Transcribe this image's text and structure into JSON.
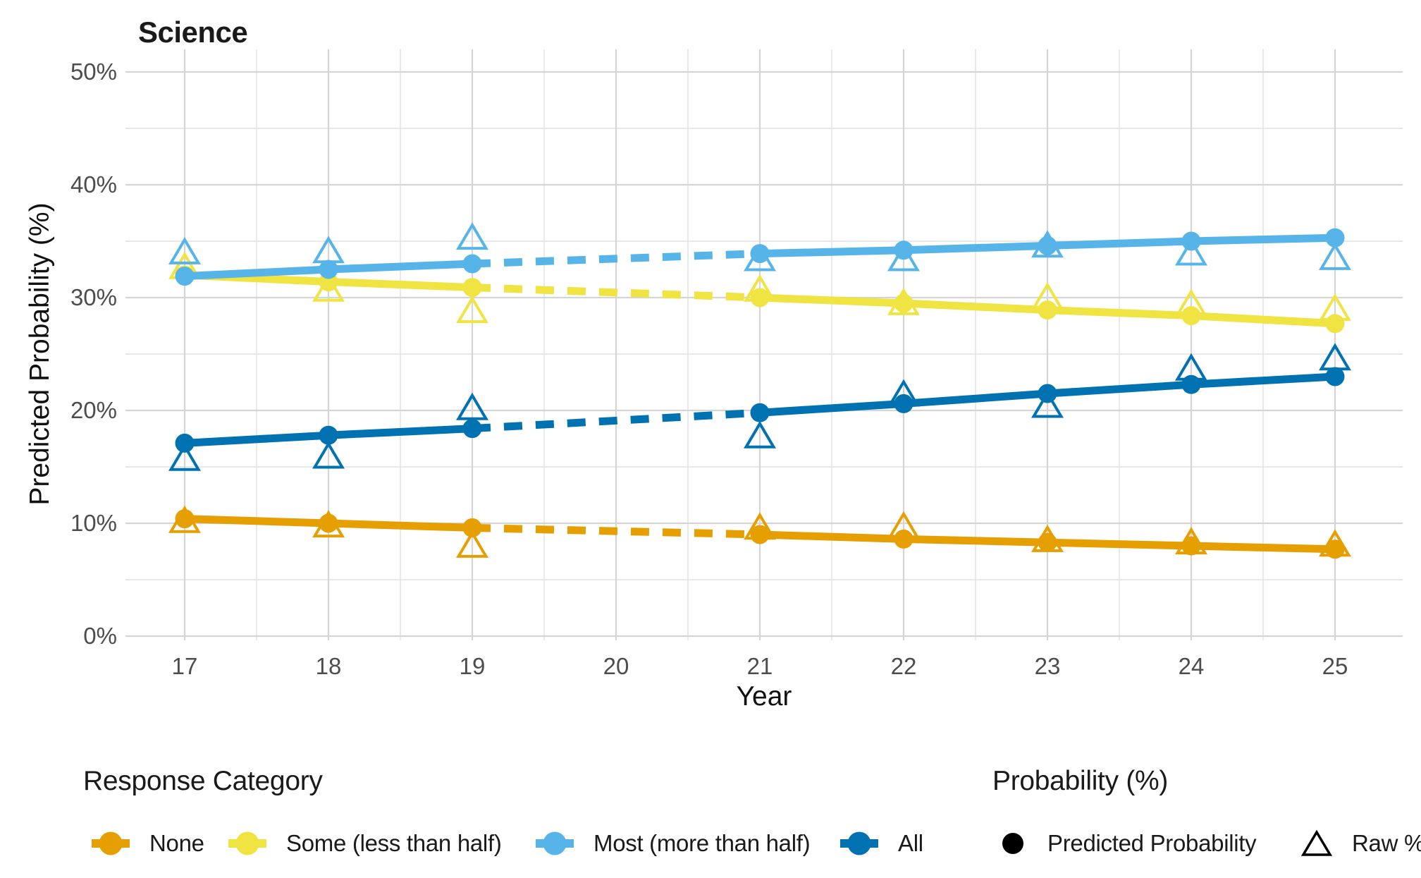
{
  "title": "Science",
  "axes": {
    "y_label": "Predicted Probability (%)",
    "x_label": "Year",
    "y_ticks": [
      "0%",
      "10%",
      "20%",
      "30%",
      "40%",
      "50%"
    ],
    "y_tick_values": [
      0,
      10,
      20,
      30,
      40,
      50
    ],
    "x_ticks": [
      "17",
      "18",
      "19",
      "20",
      "21",
      "22",
      "23",
      "24",
      "25"
    ],
    "x_tick_values": [
      17,
      18,
      19,
      20,
      21,
      22,
      23,
      24,
      25
    ]
  },
  "legend": {
    "response": {
      "title": "Response Category",
      "items": [
        {
          "label": "None",
          "color": "#E69F00"
        },
        {
          "label": "Some (less than half)",
          "color": "#F0E442"
        },
        {
          "label": "Most (more than half)",
          "color": "#56B4E9"
        },
        {
          "label": "All",
          "color": "#0072B2"
        }
      ]
    },
    "probability": {
      "title": "Probability (%)",
      "items": [
        {
          "label": "Predicted Probability",
          "marker": "circle"
        },
        {
          "label": "Raw %",
          "marker": "triangle"
        }
      ]
    }
  },
  "chart_data": {
    "type": "line",
    "title": "Science",
    "xlabel": "Year",
    "ylabel": "Predicted Probability (%)",
    "xlim": [
      16.6,
      25.5
    ],
    "ylim": [
      0,
      50
    ],
    "grid": true,
    "legend_position": "bottom",
    "x": [
      17,
      18,
      19,
      21,
      22,
      23,
      24,
      25
    ],
    "dashed_segment": {
      "from": 19,
      "to": 21,
      "note": "no data for year 20; prediction shown dashed"
    },
    "series": [
      {
        "name": "None",
        "color": "#E69F00",
        "z": 3,
        "predicted": [
          10.4,
          10.0,
          9.6,
          9.0,
          8.6,
          8.3,
          8.0,
          7.7
        ],
        "raw": [
          10.3,
          9.9,
          8.1,
          9.7,
          9.8,
          8.6,
          8.4,
          8.2
        ]
      },
      {
        "name": "Some (less than half)",
        "color": "#F0E442",
        "z": 1,
        "predicted": [
          32.0,
          31.4,
          30.9,
          30.0,
          29.5,
          28.9,
          28.4,
          27.7
        ],
        "raw": [
          32.8,
          30.8,
          28.9,
          30.8,
          29.6,
          30.1,
          29.5,
          29.1
        ]
      },
      {
        "name": "Most (more than half)",
        "color": "#56B4E9",
        "z": 2,
        "predicted": [
          31.9,
          32.5,
          33.0,
          33.9,
          34.2,
          34.6,
          35.0,
          35.3
        ],
        "raw": [
          34.1,
          34.2,
          35.4,
          33.5,
          33.5,
          34.7,
          34.0,
          33.6
        ]
      },
      {
        "name": "All",
        "color": "#0072B2",
        "z": 4,
        "predicted": [
          17.1,
          17.8,
          18.4,
          19.8,
          20.6,
          21.5,
          22.3,
          23.0
        ],
        "raw": [
          15.8,
          16.0,
          20.3,
          17.8,
          21.5,
          20.5,
          23.8,
          24.7
        ]
      }
    ],
    "marker_meaning": {
      "circle_filled": "Predicted Probability",
      "triangle_open": "Raw %"
    }
  },
  "style": {
    "grid_major_color": "#d5d5d5",
    "grid_minor_color": "#e0e0e0",
    "tick_text_color": "#4d4d4d",
    "text_color": "#1a1a1a"
  }
}
